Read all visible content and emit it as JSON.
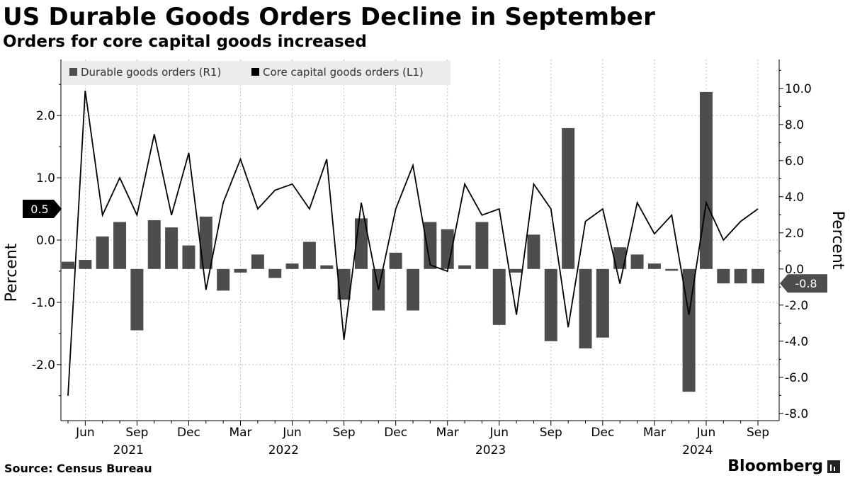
{
  "title": "US Durable Goods Orders Decline in September",
  "subtitle": "Orders for core capital goods increased",
  "source": "Source: Census Bureau",
  "brand": "Bloomberg",
  "chart_data": {
    "type": "bar+line",
    "months": [
      "2021-05",
      "2021-06",
      "2021-07",
      "2021-08",
      "2021-09",
      "2021-10",
      "2021-11",
      "2021-12",
      "2022-01",
      "2022-02",
      "2022-03",
      "2022-04",
      "2022-05",
      "2022-06",
      "2022-07",
      "2022-08",
      "2022-09",
      "2022-10",
      "2022-11",
      "2022-12",
      "2023-01",
      "2023-02",
      "2023-03",
      "2023-04",
      "2023-05",
      "2023-06",
      "2023-07",
      "2023-08",
      "2023-09",
      "2023-10",
      "2023-11",
      "2023-12",
      "2024-01",
      "2024-02",
      "2024-03",
      "2024-04",
      "2024-05",
      "2024-06",
      "2024-07",
      "2024-08",
      "2024-09"
    ],
    "series": [
      {
        "name": "Durable goods orders (R1)",
        "type": "bar",
        "axis": "right",
        "color": "#4d4d4d",
        "values": [
          0.4,
          0.5,
          1.8,
          2.6,
          -3.4,
          2.7,
          2.3,
          1.3,
          2.9,
          -1.2,
          -0.2,
          0.8,
          -0.5,
          0.3,
          1.5,
          0.2,
          -1.7,
          2.8,
          -2.3,
          0.9,
          -2.3,
          2.6,
          2.2,
          0.2,
          2.6,
          -3.1,
          -0.2,
          1.9,
          -4.0,
          7.8,
          -4.4,
          -3.8,
          1.2,
          0.8,
          0.3,
          -0.1,
          -6.8,
          9.8,
          -0.8,
          -0.8,
          -0.8
        ]
      },
      {
        "name": "Core capital goods orders (L1)",
        "type": "line",
        "axis": "left",
        "color": "#000000",
        "values": [
          -2.5,
          2.4,
          0.4,
          1.0,
          0.4,
          1.7,
          0.4,
          1.4,
          -0.8,
          0.6,
          1.3,
          0.5,
          0.8,
          0.9,
          0.5,
          1.3,
          -1.6,
          0.6,
          -0.8,
          0.5,
          1.2,
          -0.4,
          -0.5,
          0.9,
          0.4,
          0.5,
          -1.2,
          0.9,
          0.5,
          -1.4,
          0.3,
          0.5,
          -0.7,
          0.6,
          0.1,
          0.4,
          -1.2,
          0.6,
          0.0,
          0.3,
          0.5
        ]
      }
    ],
    "left_axis": {
      "label": "Percent",
      "ticks": [
        "2.0",
        "1.0",
        "0.0",
        "-1.0",
        "-2.0"
      ],
      "range": [
        -2.9,
        2.9
      ]
    },
    "right_axis": {
      "label": "Percent",
      "ticks": [
        "10.0",
        "8.0",
        "6.0",
        "4.0",
        "2.0",
        "0.0",
        "-2.0",
        "-4.0",
        "-6.0",
        "-8.0"
      ],
      "range": [
        -8.4,
        11.6
      ]
    },
    "x_ticks": [
      {
        "label": "Jun",
        "index": 1
      },
      {
        "label": "Sep",
        "index": 4
      },
      {
        "label": "Dec",
        "index": 7
      },
      {
        "label": "Mar",
        "index": 10
      },
      {
        "label": "Jun",
        "index": 13
      },
      {
        "label": "Sep",
        "index": 16
      },
      {
        "label": "Dec",
        "index": 19
      },
      {
        "label": "Mar",
        "index": 22
      },
      {
        "label": "Jun",
        "index": 25
      },
      {
        "label": "Sep",
        "index": 28
      },
      {
        "label": "Dec",
        "index": 31
      },
      {
        "label": "Mar",
        "index": 34
      },
      {
        "label": "Jun",
        "index": 37
      },
      {
        "label": "Sep",
        "index": 40
      }
    ],
    "year_labels": [
      {
        "label": "2021",
        "index": 3.5
      },
      {
        "label": "2022",
        "index": 12.5
      },
      {
        "label": "2023",
        "index": 24.5
      },
      {
        "label": "2024",
        "index": 36.5
      }
    ],
    "callouts": {
      "left": "0.5",
      "right": "-0.8"
    },
    "grid": true,
    "legend_position": "top-left"
  }
}
